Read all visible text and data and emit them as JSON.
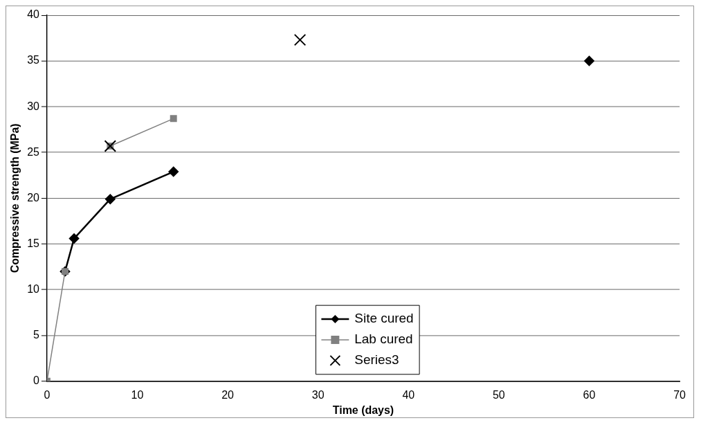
{
  "chart_data": {
    "type": "line",
    "xlabel": "Time (days)",
    "ylabel": "Compressive strength (MPa)",
    "xlim": [
      0,
      70
    ],
    "xticks": [
      0,
      10,
      20,
      30,
      40,
      50,
      60,
      70
    ],
    "ylim": [
      0,
      40
    ],
    "yticks": [
      0,
      5,
      10,
      15,
      20,
      25,
      30,
      35,
      40
    ],
    "grid": "y",
    "legend": "bottom",
    "series": [
      {
        "name": "Site cured",
        "color": "#000000",
        "marker": "diamond",
        "x": [
          2,
          3,
          7,
          14,
          28,
          60
        ],
        "values": [
          12,
          15.6,
          19.9,
          22.9,
          null,
          35
        ]
      },
      {
        "name": "Lab cured",
        "color": "#808080",
        "marker": "square",
        "x": [
          0,
          2,
          3,
          7,
          14
        ],
        "values": [
          0,
          12,
          null,
          25.7,
          28.7
        ]
      },
      {
        "name": "Series3",
        "type": "scatter",
        "color": "#000000",
        "marker": "cross",
        "x": [
          7,
          28
        ],
        "values": [
          25.7,
          37.3
        ]
      }
    ]
  }
}
